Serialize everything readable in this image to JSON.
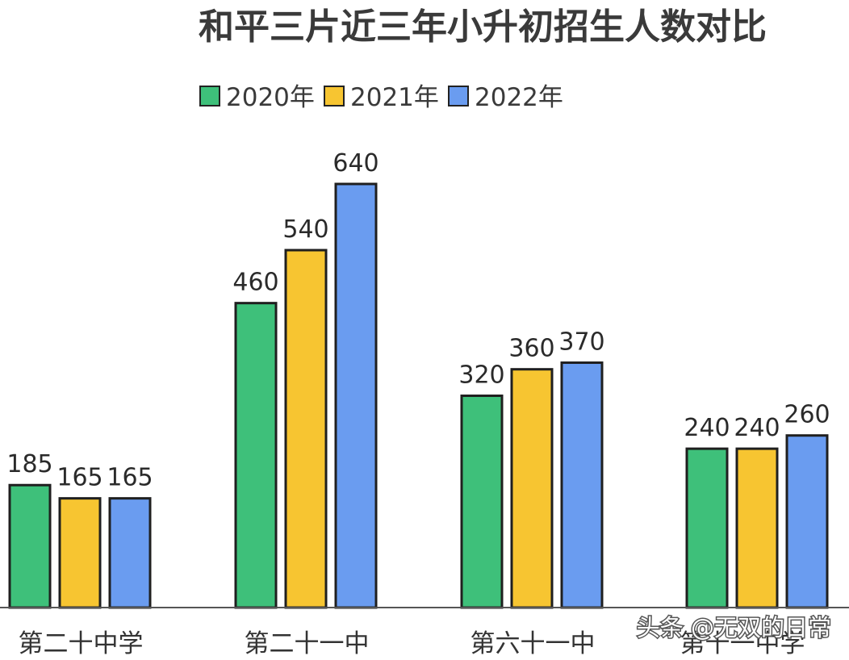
{
  "chart_data": {
    "type": "bar",
    "title": "和平三片近三年小升初招生人数对比",
    "categories": [
      "第二十中学",
      "第二十一中",
      "第六十一中",
      "第十一中学"
    ],
    "series": [
      {
        "name": "2020年",
        "color": "#3ec07a",
        "values": [
          185,
          460,
          320,
          240
        ]
      },
      {
        "name": "2021年",
        "color": "#f7c531",
        "values": [
          165,
          540,
          360,
          240
        ]
      },
      {
        "name": "2022年",
        "color": "#6a9cf0",
        "values": [
          165,
          640,
          370,
          260
        ]
      }
    ],
    "ylim": [
      0,
      640
    ],
    "legend_position": "top-left",
    "grid": false
  },
  "watermark": "头条 @无双的日常"
}
